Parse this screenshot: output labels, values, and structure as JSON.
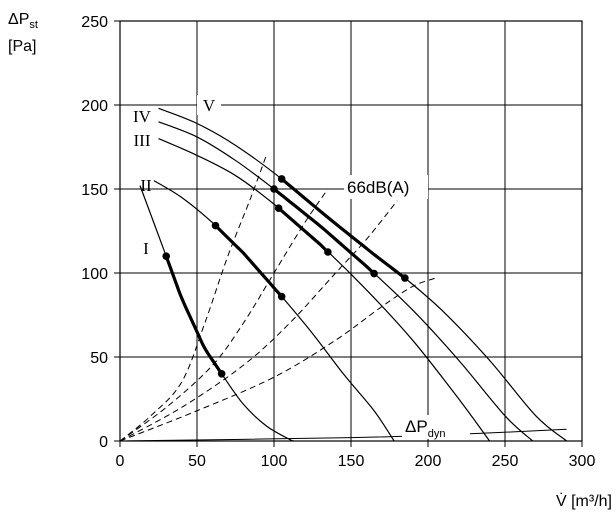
{
  "chart_data": {
    "type": "line",
    "title": "",
    "xlabel": "V̇ [m³/h]",
    "ylabel_line1": "ΔPst",
    "ylabel_line2": "[Pa]",
    "xlim": [
      0,
      300
    ],
    "ylim": [
      0,
      250
    ],
    "xticks": [
      "0",
      "50",
      "100",
      "150",
      "200",
      "250",
      "300"
    ],
    "yticks": [
      "0",
      "50",
      "100",
      "150",
      "200",
      "250"
    ],
    "grid": true,
    "series": [
      {
        "name": "I",
        "points": [
          [
            13,
            152
          ],
          [
            28,
            115
          ],
          [
            40,
            85
          ],
          [
            55,
            55
          ],
          [
            66,
            40
          ],
          [
            80,
            22
          ],
          [
            95,
            9
          ],
          [
            110,
            1
          ],
          [
            113,
            0
          ]
        ],
        "bold_range": [
          30,
          66
        ],
        "markers": [
          [
            30,
            86
          ],
          [
            66,
            41
          ]
        ]
      },
      {
        "name": "II",
        "points": [
          [
            22,
            155
          ],
          [
            40,
            145
          ],
          [
            60,
            130
          ],
          [
            80,
            112
          ],
          [
            105,
            86
          ],
          [
            125,
            64
          ],
          [
            145,
            40
          ],
          [
            165,
            18
          ],
          [
            178,
            0
          ]
        ],
        "bold_range": [
          62,
          105
        ],
        "markers": [
          [
            62,
            129
          ],
          [
            105,
            87
          ]
        ]
      },
      {
        "name": "III",
        "points": [
          [
            25,
            180
          ],
          [
            50,
            170
          ],
          [
            75,
            158
          ],
          [
            100,
            141
          ],
          [
            130,
            117
          ],
          [
            160,
            90
          ],
          [
            190,
            60
          ],
          [
            220,
            25
          ],
          [
            240,
            0
          ]
        ],
        "bold_range": [
          103,
          135
        ],
        "markers": [
          [
            103,
            133
          ],
          [
            135,
            110
          ]
        ]
      },
      {
        "name": "IV",
        "points": [
          [
            25,
            190
          ],
          [
            50,
            181
          ],
          [
            75,
            167
          ],
          [
            100,
            150
          ],
          [
            130,
            128
          ],
          [
            160,
            104
          ],
          [
            190,
            78
          ],
          [
            220,
            48
          ],
          [
            250,
            15
          ],
          [
            268,
            0
          ]
        ],
        "bold_range": [
          100,
          165
        ],
        "markers": [
          [
            100,
            150
          ],
          [
            165,
            104
          ]
        ]
      },
      {
        "name": "V",
        "points": [
          [
            25,
            198
          ],
          [
            50,
            189
          ],
          [
            75,
            176
          ],
          [
            105,
            156
          ],
          [
            135,
            133
          ],
          [
            165,
            111
          ],
          [
            185,
            97
          ],
          [
            210,
            77
          ],
          [
            240,
            48
          ],
          [
            270,
            15
          ],
          [
            290,
            0
          ]
        ],
        "bold_range": [
          105,
          185
        ],
        "markers": [
          [
            105,
            156
          ],
          [
            185,
            97
          ]
        ]
      }
    ],
    "dashed_curves": [
      {
        "points": [
          [
            0,
            0
          ],
          [
            20,
            15
          ],
          [
            40,
            35
          ],
          [
            55,
            70
          ],
          [
            70,
            110
          ],
          [
            85,
            145
          ],
          [
            95,
            170
          ]
        ]
      },
      {
        "points": [
          [
            0,
            0
          ],
          [
            30,
            20
          ],
          [
            60,
            45
          ],
          [
            80,
            70
          ],
          [
            100,
            100
          ],
          [
            120,
            130
          ],
          [
            135,
            150
          ]
        ]
      },
      {
        "points": [
          [
            0,
            0
          ],
          [
            40,
            20
          ],
          [
            80,
            45
          ],
          [
            110,
            70
          ],
          [
            140,
            100
          ],
          [
            160,
            120
          ],
          [
            180,
            143
          ]
        ]
      },
      {
        "points": [
          [
            0,
            0
          ],
          [
            50,
            18
          ],
          [
            100,
            38
          ],
          [
            140,
            60
          ],
          [
            170,
            80
          ],
          [
            190,
            92
          ],
          [
            205,
            97
          ]
        ]
      }
    ],
    "dynamic_pressure_line": {
      "points": [
        [
          0,
          0
        ],
        [
          150,
          2
        ],
        [
          220,
          4
        ],
        [
          290,
          7
        ]
      ]
    },
    "annotations": {
      "dbA": "66dB(A)",
      "dpdyn_main": "ΔP",
      "dpdyn_sub": "dyn"
    }
  }
}
